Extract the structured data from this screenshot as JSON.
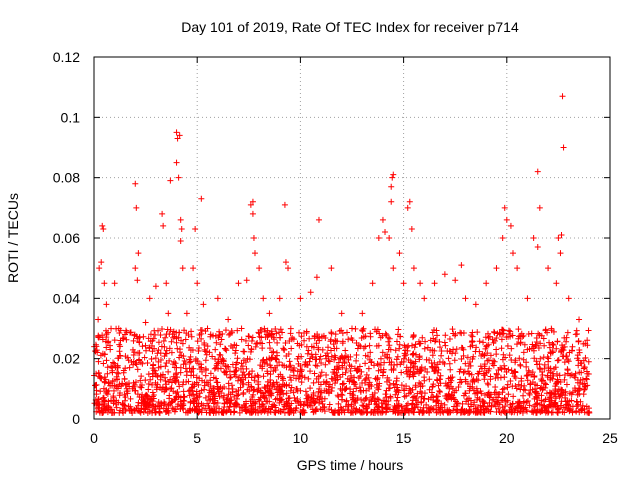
{
  "chart_data": {
    "type": "scatter",
    "title": "Day 101 of 2019, Rate Of TEC Index for receiver p714",
    "xlabel": "GPS time / hours",
    "ylabel": "ROTI / TECUs",
    "xlim": [
      0,
      25
    ],
    "ylim": [
      0,
      0.12
    ],
    "xticks": [
      0,
      5,
      10,
      15,
      20,
      25
    ],
    "yticks": [
      0,
      0.02,
      0.04,
      0.06,
      0.08,
      0.1,
      0.12
    ],
    "xtick_labels": [
      "0",
      "5",
      "10",
      "15",
      "20",
      "25"
    ],
    "ytick_labels": [
      "0",
      "0.02",
      "0.04",
      "0.06",
      "0.08",
      "0.1",
      "0.12"
    ],
    "grid": true,
    "marker": "+",
    "marker_color": "#ff0000",
    "series": [
      {
        "name": "ROTI",
        "points": [
          [
            0.1,
            0.015
          ],
          [
            0.2,
            0.033
          ],
          [
            0.25,
            0.05
          ],
          [
            0.35,
            0.052
          ],
          [
            0.4,
            0.064
          ],
          [
            0.45,
            0.063
          ],
          [
            0.5,
            0.045
          ],
          [
            0.6,
            0.038
          ],
          [
            1.0,
            0.045
          ],
          [
            1.2,
            0.03
          ],
          [
            1.5,
            0.028
          ],
          [
            2.0,
            0.078
          ],
          [
            2.05,
            0.07
          ],
          [
            2.0,
            0.05
          ],
          [
            2.1,
            0.046
          ],
          [
            2.15,
            0.055
          ],
          [
            2.5,
            0.032
          ],
          [
            2.7,
            0.04
          ],
          [
            3.0,
            0.044
          ],
          [
            3.3,
            0.068
          ],
          [
            3.35,
            0.064
          ],
          [
            3.5,
            0.045
          ],
          [
            3.6,
            0.035
          ],
          [
            3.7,
            0.079
          ],
          [
            4.0,
            0.095
          ],
          [
            4.05,
            0.093
          ],
          [
            4.0,
            0.085
          ],
          [
            4.1,
            0.08
          ],
          [
            4.15,
            0.094
          ],
          [
            4.2,
            0.066
          ],
          [
            4.25,
            0.063
          ],
          [
            4.2,
            0.059
          ],
          [
            4.3,
            0.05
          ],
          [
            4.5,
            0.035
          ],
          [
            4.8,
            0.05
          ],
          [
            4.9,
            0.063
          ],
          [
            5.0,
            0.045
          ],
          [
            5.2,
            0.073
          ],
          [
            5.3,
            0.038
          ],
          [
            5.5,
            0.03
          ],
          [
            6.0,
            0.04
          ],
          [
            6.5,
            0.033
          ],
          [
            7.0,
            0.045
          ],
          [
            7.4,
            0.046
          ],
          [
            7.6,
            0.071
          ],
          [
            7.7,
            0.072
          ],
          [
            7.7,
            0.068
          ],
          [
            7.75,
            0.06
          ],
          [
            7.8,
            0.055
          ],
          [
            8.0,
            0.05
          ],
          [
            8.2,
            0.04
          ],
          [
            8.5,
            0.035
          ],
          [
            9.0,
            0.04
          ],
          [
            9.25,
            0.071
          ],
          [
            9.3,
            0.052
          ],
          [
            9.4,
            0.05
          ],
          [
            10.0,
            0.04
          ],
          [
            10.5,
            0.042
          ],
          [
            10.8,
            0.047
          ],
          [
            10.9,
            0.066
          ],
          [
            11.5,
            0.05
          ],
          [
            12.0,
            0.035
          ],
          [
            12.5,
            0.03
          ],
          [
            13.0,
            0.035
          ],
          [
            13.5,
            0.045
          ],
          [
            13.8,
            0.06
          ],
          [
            14.0,
            0.066
          ],
          [
            14.1,
            0.062
          ],
          [
            14.3,
            0.06
          ],
          [
            14.4,
            0.077
          ],
          [
            14.45,
            0.08
          ],
          [
            14.5,
            0.081
          ],
          [
            14.4,
            0.072
          ],
          [
            14.5,
            0.05
          ],
          [
            14.8,
            0.055
          ],
          [
            15.0,
            0.045
          ],
          [
            15.2,
            0.07
          ],
          [
            15.3,
            0.072
          ],
          [
            15.4,
            0.063
          ],
          [
            15.5,
            0.05
          ],
          [
            15.8,
            0.045
          ],
          [
            16.0,
            0.04
          ],
          [
            16.5,
            0.045
          ],
          [
            17.0,
            0.048
          ],
          [
            17.5,
            0.046
          ],
          [
            17.8,
            0.051
          ],
          [
            18.0,
            0.04
          ],
          [
            18.5,
            0.038
          ],
          [
            19.0,
            0.045
          ],
          [
            19.5,
            0.05
          ],
          [
            19.8,
            0.06
          ],
          [
            19.9,
            0.07
          ],
          [
            20.0,
            0.066
          ],
          [
            20.2,
            0.064
          ],
          [
            20.3,
            0.055
          ],
          [
            20.5,
            0.05
          ],
          [
            21.0,
            0.04
          ],
          [
            21.3,
            0.06
          ],
          [
            21.5,
            0.082
          ],
          [
            21.6,
            0.07
          ],
          [
            21.5,
            0.057
          ],
          [
            22.0,
            0.05
          ],
          [
            22.4,
            0.045
          ],
          [
            22.5,
            0.06
          ],
          [
            22.65,
            0.061
          ],
          [
            22.7,
            0.107
          ],
          [
            22.75,
            0.09
          ],
          [
            22.6,
            0.055
          ],
          [
            23.0,
            0.04
          ],
          [
            23.5,
            0.033
          ],
          [
            23.8,
            0.025
          ],
          [
            23.9,
            0.015
          ]
        ],
        "dense_band": {
          "description": "Dense cluster of points across the full time range",
          "x_range": [
            0,
            24
          ],
          "y_range": [
            0.002,
            0.03
          ]
        }
      }
    ]
  }
}
